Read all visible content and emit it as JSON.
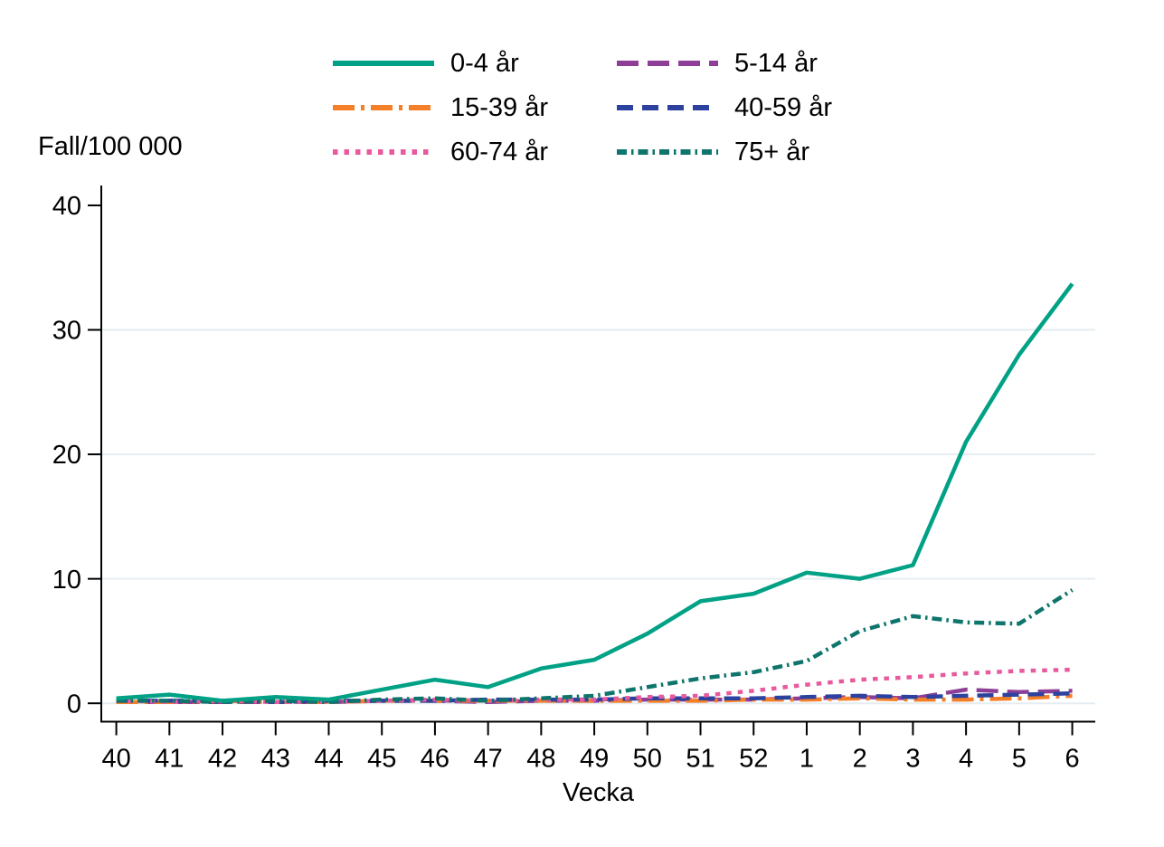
{
  "chart_data": {
    "type": "line",
    "title": "",
    "ylabel": "Fall/100 000",
    "xlabel": "Vecka",
    "ylim": [
      0,
      40
    ],
    "yticks": [
      0,
      10,
      20,
      30,
      40
    ],
    "grid": "horizontal-light",
    "legend_position": "top",
    "categories": [
      "40",
      "41",
      "42",
      "43",
      "44",
      "45",
      "46",
      "47",
      "48",
      "49",
      "50",
      "51",
      "52",
      "1",
      "2",
      "3",
      "4",
      "5",
      "6"
    ],
    "series": [
      {
        "name": "0-4 år",
        "color": "#00a185",
        "line_style": "solid",
        "values": [
          0.4,
          0.7,
          0.2,
          0.5,
          0.3,
          1.1,
          1.9,
          1.3,
          2.8,
          3.5,
          5.6,
          8.2,
          8.8,
          10.5,
          10.0,
          11.1,
          21.0,
          28.0,
          33.7
        ]
      },
      {
        "name": "5-14 år",
        "color": "#8d3f98",
        "line_style": "long-dash",
        "values": [
          0.1,
          0.1,
          0.1,
          0.1,
          0.1,
          0.2,
          0.2,
          0.1,
          0.2,
          0.2,
          0.3,
          0.3,
          0.3,
          0.4,
          0.5,
          0.4,
          1.1,
          0.9,
          1.0
        ]
      },
      {
        "name": "15-39 år",
        "color": "#f57f28",
        "line_style": "long-dash-dot",
        "values": [
          0.1,
          0.1,
          0.2,
          0.1,
          0.1,
          0.2,
          0.2,
          0.2,
          0.2,
          0.2,
          0.2,
          0.2,
          0.3,
          0.3,
          0.4,
          0.3,
          0.3,
          0.4,
          0.6
        ]
      },
      {
        "name": "40-59 år",
        "color": "#2d429f",
        "line_style": "dash",
        "values": [
          0.2,
          0.2,
          0.2,
          0.1,
          0.2,
          0.2,
          0.2,
          0.3,
          0.3,
          0.3,
          0.4,
          0.4,
          0.4,
          0.5,
          0.6,
          0.5,
          0.6,
          0.7,
          0.8
        ]
      },
      {
        "name": "60-74 år",
        "color": "#e85a9e",
        "line_style": "dot",
        "values": [
          0.2,
          0.1,
          0.2,
          0.1,
          0.1,
          0.2,
          0.3,
          0.2,
          0.3,
          0.3,
          0.5,
          0.6,
          1.0,
          1.5,
          1.9,
          2.1,
          2.4,
          2.6,
          2.7
        ]
      },
      {
        "name": "75+ år",
        "color": "#0d756c",
        "line_style": "short-dash-dot",
        "values": [
          0.2,
          0.2,
          0.1,
          0.2,
          0.1,
          0.3,
          0.4,
          0.2,
          0.4,
          0.6,
          1.3,
          2.0,
          2.5,
          3.4,
          5.8,
          7.0,
          6.5,
          6.4,
          9.1
        ]
      }
    ],
    "gridline_color": "#e4edf2",
    "axis_color": "#000000"
  }
}
